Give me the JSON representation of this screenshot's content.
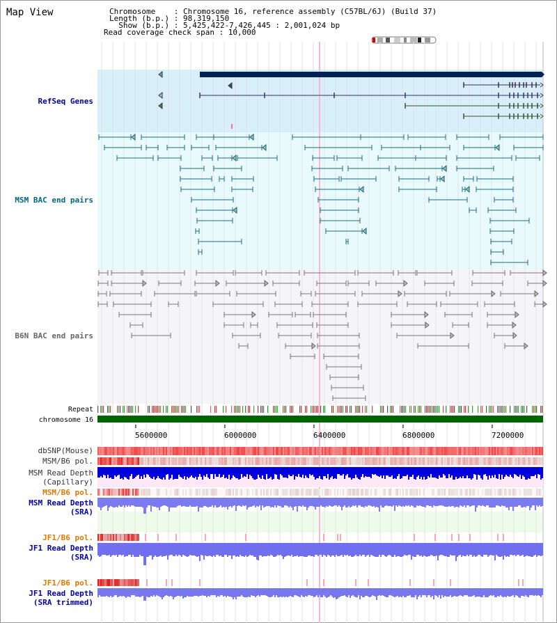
{
  "title": "Map View",
  "info": {
    "line1": "Chromosome    : Chromosome 16, reference assembly (C57BL/6J) (Build 37)",
    "line2": "Length (b.p.) : 98,319,150",
    "line3": "  Show (b.p.) : 5,425,422-7,426,445 : 2,001,024 bp",
    "line4": "Read coverage check span : 10,000"
  },
  "tracks": {
    "refseq": "RefSeq Genes",
    "msm_bac": "MSM BAC end pairs",
    "b6n_bac": "B6N BAC end pairs",
    "repeat": "Repeat",
    "chromosome": "chromosome 16",
    "dbsnp": "dbSNP(Mouse)",
    "msm_b6_pol": "MSM/B6 pol.",
    "msm_rd_cap_1": "MSM Read Depth",
    "msm_rd_cap_2": "(Capillary)",
    "msm_b6_pol2": "MSM/B6 pol.",
    "msm_rd_sra_1": "MSM Read Depth",
    "msm_rd_sra_2": "(SRA)",
    "jf1_b6_pol": "JF1/B6 pol.",
    "jf1_rd_sra_1": "JF1 Read Depth",
    "jf1_rd_sra_2": "(SRA)",
    "jf1_b6_pol2": "JF1/B6 pol.",
    "jf1_rd_trim_1": "JF1 Read Depth",
    "jf1_rd_trim_2": "(SRA trimmed)"
  },
  "axis": {
    "ticks": [
      "5600000",
      "6000000",
      "6400000",
      "6800000",
      "7200000"
    ]
  },
  "colors": {
    "refseq_label": "#000099",
    "msm_label": "#006680",
    "b6n_label": "#666666",
    "orange_label": "#e07800",
    "blue_label": "#0000aa",
    "chrom_green": "#006400"
  }
}
